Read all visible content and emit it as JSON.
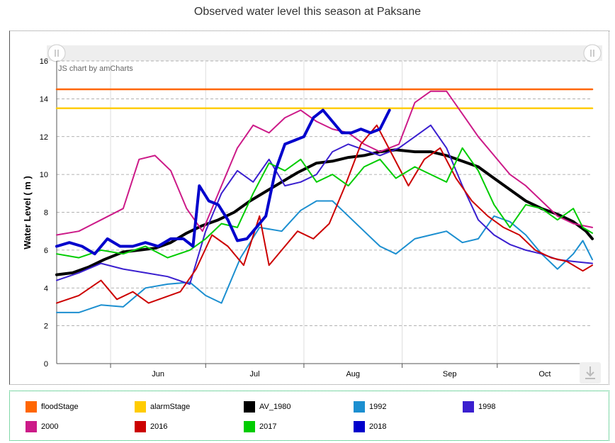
{
  "title": "Observed water level this season at Paksane",
  "brand": "JS chart by amCharts",
  "chart_data": {
    "type": "line",
    "title": "Observed water level this season at Paksane",
    "ylabel": "Water Level ( m )",
    "ylim": [
      0,
      16
    ],
    "yticks": [
      0,
      2,
      4,
      6,
      8,
      10,
      12,
      14,
      16
    ],
    "x_start": "2018-05-15",
    "x_end": "2018-10-31",
    "xticks": [
      {
        "label": "Jun",
        "date": "2018-06-01"
      },
      {
        "label": "Jul",
        "date": "2018-07-01"
      },
      {
        "label": "Aug",
        "date": "2018-08-01"
      },
      {
        "label": "Sep",
        "date": "2018-09-01"
      },
      {
        "label": "Oct",
        "date": "2018-10-01"
      }
    ],
    "grid": true,
    "legend_position": "bottom",
    "series": [
      {
        "name": "floodStage",
        "color": "#ff6600",
        "width": 2.5,
        "points": [
          [
            "2018-05-15",
            14.5
          ],
          [
            "2018-10-31",
            14.5
          ]
        ]
      },
      {
        "name": "alarmStage",
        "color": "#ffcc00",
        "width": 2.5,
        "points": [
          [
            "2018-05-15",
            13.5
          ],
          [
            "2018-10-31",
            13.5
          ]
        ]
      },
      {
        "name": "AV_1980",
        "color": "#000000",
        "width": 4,
        "points": [
          [
            "2018-05-15",
            4.7
          ],
          [
            "2018-05-20",
            4.8
          ],
          [
            "2018-05-25",
            5.1
          ],
          [
            "2018-05-30",
            5.5
          ],
          [
            "2018-06-05",
            5.9
          ],
          [
            "2018-06-10",
            6.0
          ],
          [
            "2018-06-15",
            6.1
          ],
          [
            "2018-06-20",
            6.4
          ],
          [
            "2018-06-25",
            6.9
          ],
          [
            "2018-06-30",
            7.3
          ],
          [
            "2018-07-05",
            7.6
          ],
          [
            "2018-07-10",
            8.0
          ],
          [
            "2018-07-15",
            8.6
          ],
          [
            "2018-07-20",
            9.1
          ],
          [
            "2018-07-25",
            9.6
          ],
          [
            "2018-07-30",
            10.1
          ],
          [
            "2018-08-05",
            10.6
          ],
          [
            "2018-08-10",
            10.7
          ],
          [
            "2018-08-15",
            10.9
          ],
          [
            "2018-08-20",
            11.0
          ],
          [
            "2018-08-25",
            11.2
          ],
          [
            "2018-08-30",
            11.3
          ],
          [
            "2018-09-05",
            11.2
          ],
          [
            "2018-09-10",
            11.2
          ],
          [
            "2018-09-15",
            11.0
          ],
          [
            "2018-09-20",
            10.7
          ],
          [
            "2018-09-25",
            10.4
          ],
          [
            "2018-09-30",
            9.8
          ],
          [
            "2018-10-05",
            9.2
          ],
          [
            "2018-10-10",
            8.6
          ],
          [
            "2018-10-15",
            8.2
          ],
          [
            "2018-10-20",
            7.9
          ],
          [
            "2018-10-25",
            7.5
          ],
          [
            "2018-10-29",
            7.0
          ],
          [
            "2018-10-31",
            6.6
          ]
        ]
      },
      {
        "name": "1992",
        "color": "#1c8fd0",
        "width": 2,
        "points": [
          [
            "2018-05-15",
            2.7
          ],
          [
            "2018-05-22",
            2.7
          ],
          [
            "2018-05-29",
            3.1
          ],
          [
            "2018-06-05",
            3.0
          ],
          [
            "2018-06-12",
            4.0
          ],
          [
            "2018-06-19",
            4.2
          ],
          [
            "2018-06-26",
            4.3
          ],
          [
            "2018-07-01",
            3.6
          ],
          [
            "2018-07-06",
            3.2
          ],
          [
            "2018-07-12",
            5.6
          ],
          [
            "2018-07-18",
            7.2
          ],
          [
            "2018-07-25",
            7.0
          ],
          [
            "2018-07-31",
            8.1
          ],
          [
            "2018-08-05",
            8.6
          ],
          [
            "2018-08-10",
            8.6
          ],
          [
            "2018-08-15",
            7.8
          ],
          [
            "2018-08-20",
            7.0
          ],
          [
            "2018-08-25",
            6.2
          ],
          [
            "2018-08-30",
            5.8
          ],
          [
            "2018-09-05",
            6.6
          ],
          [
            "2018-09-10",
            6.8
          ],
          [
            "2018-09-15",
            7.0
          ],
          [
            "2018-09-20",
            6.4
          ],
          [
            "2018-09-25",
            6.6
          ],
          [
            "2018-09-30",
            7.8
          ],
          [
            "2018-10-05",
            7.5
          ],
          [
            "2018-10-10",
            6.8
          ],
          [
            "2018-10-15",
            5.8
          ],
          [
            "2018-10-20",
            5.0
          ],
          [
            "2018-10-25",
            5.8
          ],
          [
            "2018-10-28",
            6.5
          ],
          [
            "2018-10-31",
            5.5
          ]
        ]
      },
      {
        "name": "1998",
        "color": "#3a1fcf",
        "width": 2,
        "points": [
          [
            "2018-05-15",
            4.4
          ],
          [
            "2018-05-22",
            4.8
          ],
          [
            "2018-05-29",
            5.3
          ],
          [
            "2018-06-05",
            5.0
          ],
          [
            "2018-06-12",
            4.8
          ],
          [
            "2018-06-19",
            4.6
          ],
          [
            "2018-06-26",
            4.2
          ],
          [
            "2018-07-01",
            7.0
          ],
          [
            "2018-07-06",
            9.0
          ],
          [
            "2018-07-11",
            10.2
          ],
          [
            "2018-07-16",
            9.6
          ],
          [
            "2018-07-21",
            10.8
          ],
          [
            "2018-07-26",
            9.4
          ],
          [
            "2018-07-31",
            9.6
          ],
          [
            "2018-08-05",
            10.0
          ],
          [
            "2018-08-10",
            11.2
          ],
          [
            "2018-08-15",
            11.6
          ],
          [
            "2018-08-20",
            11.3
          ],
          [
            "2018-08-25",
            11.0
          ],
          [
            "2018-08-31",
            11.4
          ],
          [
            "2018-09-05",
            12.0
          ],
          [
            "2018-09-10",
            12.6
          ],
          [
            "2018-09-15",
            11.4
          ],
          [
            "2018-09-20",
            9.4
          ],
          [
            "2018-09-25",
            7.6
          ],
          [
            "2018-09-30",
            6.8
          ],
          [
            "2018-10-05",
            6.3
          ],
          [
            "2018-10-10",
            6.0
          ],
          [
            "2018-10-15",
            5.8
          ],
          [
            "2018-10-20",
            5.5
          ],
          [
            "2018-10-25",
            5.4
          ],
          [
            "2018-10-31",
            5.3
          ]
        ]
      },
      {
        "name": "2000",
        "color": "#cc1a88",
        "width": 2,
        "points": [
          [
            "2018-05-15",
            6.8
          ],
          [
            "2018-05-22",
            7.0
          ],
          [
            "2018-05-29",
            7.6
          ],
          [
            "2018-06-05",
            8.2
          ],
          [
            "2018-06-10",
            10.8
          ],
          [
            "2018-06-15",
            11.0
          ],
          [
            "2018-06-20",
            10.2
          ],
          [
            "2018-06-25",
            8.2
          ],
          [
            "2018-06-30",
            7.0
          ],
          [
            "2018-07-06",
            9.4
          ],
          [
            "2018-07-11",
            11.4
          ],
          [
            "2018-07-16",
            12.6
          ],
          [
            "2018-07-21",
            12.2
          ],
          [
            "2018-07-26",
            13.0
          ],
          [
            "2018-07-31",
            13.4
          ],
          [
            "2018-08-05",
            12.8
          ],
          [
            "2018-08-10",
            12.4
          ],
          [
            "2018-08-15",
            12.2
          ],
          [
            "2018-08-20",
            11.6
          ],
          [
            "2018-08-25",
            11.2
          ],
          [
            "2018-08-31",
            11.6
          ],
          [
            "2018-09-05",
            13.8
          ],
          [
            "2018-09-10",
            14.4
          ],
          [
            "2018-09-15",
            14.4
          ],
          [
            "2018-09-20",
            13.2
          ],
          [
            "2018-09-25",
            12.0
          ],
          [
            "2018-09-30",
            11.0
          ],
          [
            "2018-10-05",
            10.0
          ],
          [
            "2018-10-10",
            9.4
          ],
          [
            "2018-10-15",
            8.6
          ],
          [
            "2018-10-20",
            7.8
          ],
          [
            "2018-10-25",
            7.4
          ],
          [
            "2018-10-31",
            7.2
          ]
        ]
      },
      {
        "name": "2016",
        "color": "#cc0000",
        "width": 2,
        "points": [
          [
            "2018-05-15",
            3.2
          ],
          [
            "2018-05-22",
            3.6
          ],
          [
            "2018-05-29",
            4.4
          ],
          [
            "2018-06-03",
            3.4
          ],
          [
            "2018-06-08",
            3.8
          ],
          [
            "2018-06-13",
            3.2
          ],
          [
            "2018-06-18",
            3.5
          ],
          [
            "2018-06-23",
            3.8
          ],
          [
            "2018-06-28",
            5.0
          ],
          [
            "2018-07-03",
            6.8
          ],
          [
            "2018-07-08",
            6.2
          ],
          [
            "2018-07-13",
            5.2
          ],
          [
            "2018-07-18",
            7.8
          ],
          [
            "2018-07-21",
            5.2
          ],
          [
            "2018-07-25",
            6.0
          ],
          [
            "2018-07-30",
            7.0
          ],
          [
            "2018-08-04",
            6.6
          ],
          [
            "2018-08-09",
            7.4
          ],
          [
            "2018-08-14",
            9.4
          ],
          [
            "2018-08-19",
            11.6
          ],
          [
            "2018-08-24",
            12.6
          ],
          [
            "2018-08-29",
            11.0
          ],
          [
            "2018-09-03",
            9.4
          ],
          [
            "2018-09-08",
            10.8
          ],
          [
            "2018-09-13",
            11.4
          ],
          [
            "2018-09-18",
            9.8
          ],
          [
            "2018-09-23",
            8.6
          ],
          [
            "2018-09-28",
            7.8
          ],
          [
            "2018-10-03",
            7.2
          ],
          [
            "2018-10-08",
            6.8
          ],
          [
            "2018-10-13",
            6.0
          ],
          [
            "2018-10-18",
            5.6
          ],
          [
            "2018-10-23",
            5.4
          ],
          [
            "2018-10-28",
            4.9
          ],
          [
            "2018-10-31",
            5.2
          ]
        ]
      },
      {
        "name": "2017",
        "color": "#00cc00",
        "width": 2,
        "points": [
          [
            "2018-05-15",
            5.8
          ],
          [
            "2018-05-22",
            5.6
          ],
          [
            "2018-05-29",
            6.0
          ],
          [
            "2018-06-05",
            5.8
          ],
          [
            "2018-06-12",
            6.2
          ],
          [
            "2018-06-19",
            5.6
          ],
          [
            "2018-06-26",
            6.0
          ],
          [
            "2018-07-01",
            6.6
          ],
          [
            "2018-07-06",
            7.4
          ],
          [
            "2018-07-11",
            7.2
          ],
          [
            "2018-07-16",
            9.0
          ],
          [
            "2018-07-21",
            10.6
          ],
          [
            "2018-07-26",
            10.2
          ],
          [
            "2018-07-31",
            10.8
          ],
          [
            "2018-08-05",
            9.6
          ],
          [
            "2018-08-10",
            10.0
          ],
          [
            "2018-08-15",
            9.4
          ],
          [
            "2018-08-20",
            10.4
          ],
          [
            "2018-08-25",
            10.8
          ],
          [
            "2018-08-30",
            9.8
          ],
          [
            "2018-09-05",
            10.4
          ],
          [
            "2018-09-10",
            10.0
          ],
          [
            "2018-09-15",
            9.6
          ],
          [
            "2018-09-20",
            11.4
          ],
          [
            "2018-09-25",
            10.2
          ],
          [
            "2018-09-30",
            8.4
          ],
          [
            "2018-10-05",
            7.2
          ],
          [
            "2018-10-10",
            8.4
          ],
          [
            "2018-10-15",
            8.2
          ],
          [
            "2018-10-20",
            7.6
          ],
          [
            "2018-10-25",
            8.2
          ],
          [
            "2018-10-28",
            7.2
          ],
          [
            "2018-10-31",
            6.9
          ]
        ]
      },
      {
        "name": "2018",
        "color": "#0000cc",
        "width": 4,
        "points": [
          [
            "2018-05-15",
            6.2
          ],
          [
            "2018-05-19",
            6.4
          ],
          [
            "2018-05-23",
            6.2
          ],
          [
            "2018-05-27",
            5.8
          ],
          [
            "2018-05-31",
            6.6
          ],
          [
            "2018-06-04",
            6.2
          ],
          [
            "2018-06-08",
            6.2
          ],
          [
            "2018-06-12",
            6.4
          ],
          [
            "2018-06-16",
            6.2
          ],
          [
            "2018-06-20",
            6.6
          ],
          [
            "2018-06-24",
            6.6
          ],
          [
            "2018-06-27",
            6.2
          ],
          [
            "2018-06-29",
            9.4
          ],
          [
            "2018-07-02",
            8.6
          ],
          [
            "2018-07-05",
            8.4
          ],
          [
            "2018-07-08",
            7.6
          ],
          [
            "2018-07-11",
            6.5
          ],
          [
            "2018-07-14",
            6.6
          ],
          [
            "2018-07-17",
            7.2
          ],
          [
            "2018-07-20",
            7.8
          ],
          [
            "2018-07-23",
            10.2
          ],
          [
            "2018-07-26",
            11.6
          ],
          [
            "2018-07-29",
            11.8
          ],
          [
            "2018-08-01",
            12.0
          ],
          [
            "2018-08-04",
            13.0
          ],
          [
            "2018-08-07",
            13.4
          ],
          [
            "2018-08-10",
            12.8
          ],
          [
            "2018-08-13",
            12.2
          ],
          [
            "2018-08-16",
            12.2
          ],
          [
            "2018-08-19",
            12.4
          ],
          [
            "2018-08-22",
            12.2
          ],
          [
            "2018-08-25",
            12.4
          ],
          [
            "2018-08-28",
            13.4
          ]
        ]
      }
    ]
  },
  "legend": [
    {
      "label": "floodStage",
      "color": "#ff6600"
    },
    {
      "label": "alarmStage",
      "color": "#ffcc00"
    },
    {
      "label": "AV_1980",
      "color": "#000000"
    },
    {
      "label": "1992",
      "color": "#1c8fd0"
    },
    {
      "label": "1998",
      "color": "#3a1fcf"
    },
    {
      "label": "2000",
      "color": "#cc1a88"
    },
    {
      "label": "2016",
      "color": "#cc0000"
    },
    {
      "label": "2017",
      "color": "#00cc00"
    },
    {
      "label": "2018",
      "color": "#0000cc"
    }
  ]
}
